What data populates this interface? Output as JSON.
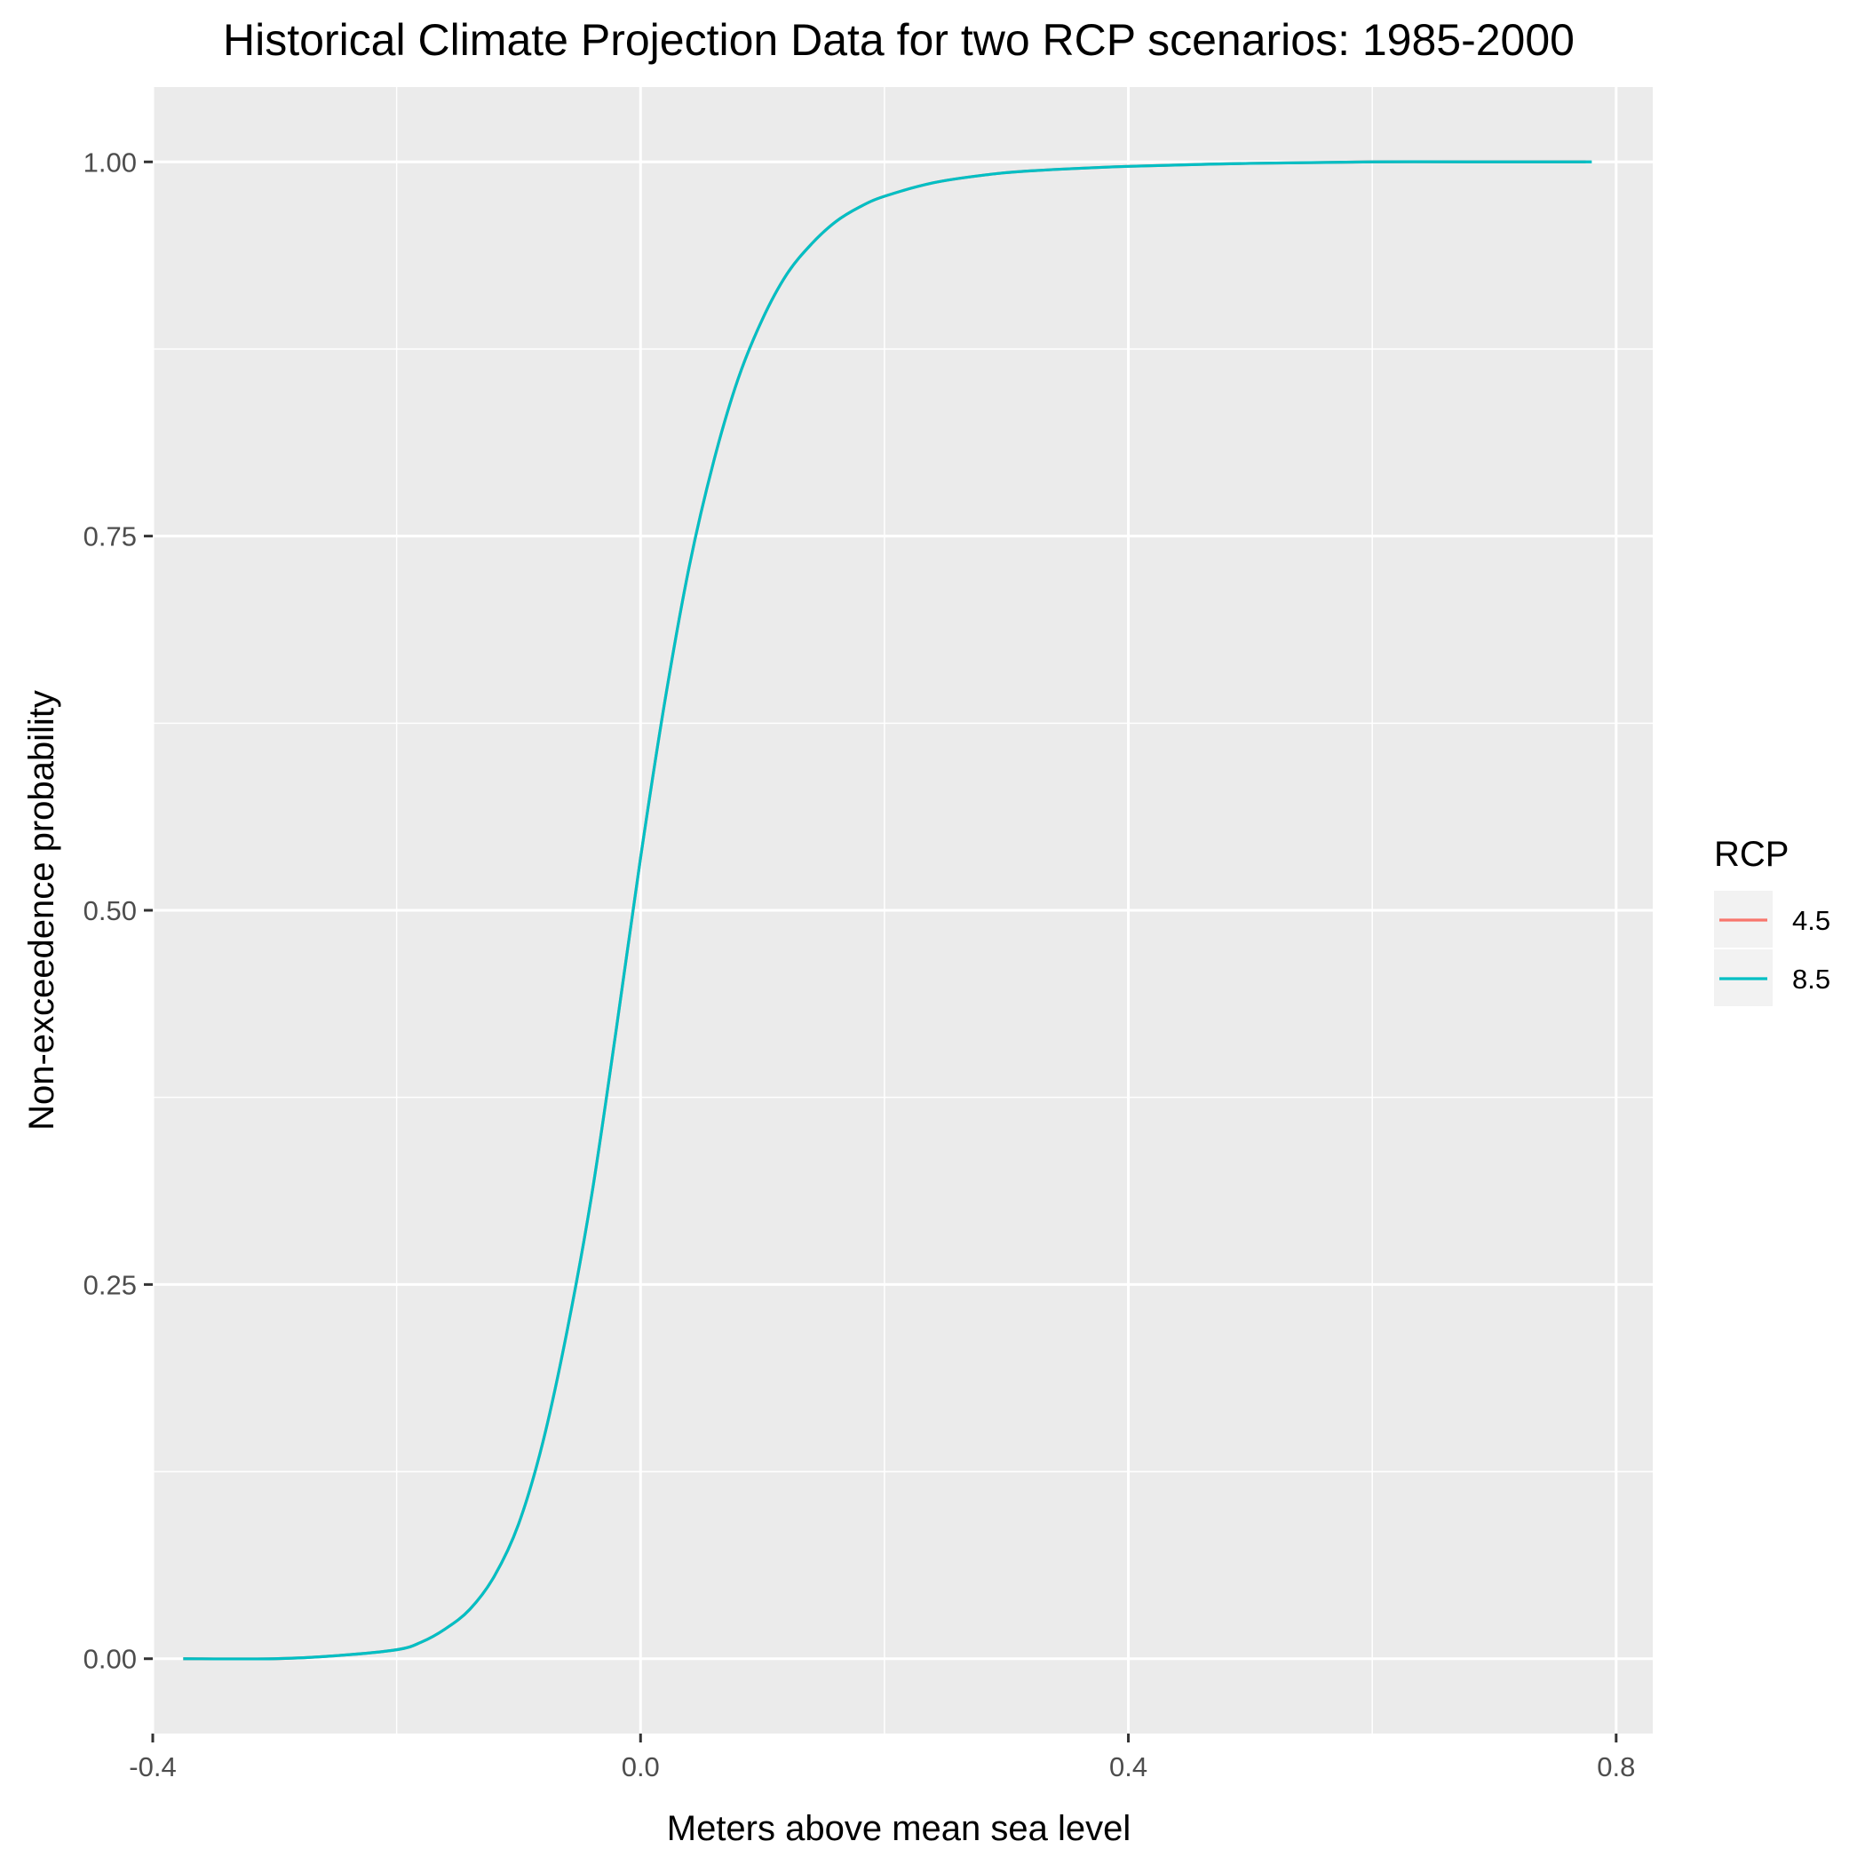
{
  "chart_data": {
    "type": "line",
    "title": "Historical Climate Projection Data for two RCP scenarios: 1985-2000",
    "xlabel": "Meters above mean sea level",
    "ylabel": "Non-exceedence probability",
    "xlim": [
      -0.4,
      0.83
    ],
    "ylim": [
      -0.05,
      1.05
    ],
    "x_ticks": [
      -0.4,
      0.0,
      0.4,
      0.8
    ],
    "x_tick_labels": [
      "-0.4",
      "0.0",
      "0.4",
      "0.8"
    ],
    "y_ticks": [
      0.0,
      0.25,
      0.5,
      0.75,
      1.0
    ],
    "y_tick_labels": [
      "0.00",
      "0.25",
      "0.50",
      "0.75",
      "1.00"
    ],
    "grid": true,
    "legend": {
      "title": "RCP",
      "position": "right"
    },
    "series": [
      {
        "name": "4.5",
        "color": "#F8766D",
        "x": [
          -0.375,
          -0.3,
          -0.25,
          -0.2,
          -0.18,
          -0.16,
          -0.14,
          -0.12,
          -0.1,
          -0.08,
          -0.06,
          -0.04,
          -0.02,
          0.0,
          0.02,
          0.04,
          0.06,
          0.08,
          0.1,
          0.12,
          0.14,
          0.16,
          0.18,
          0.2,
          0.24,
          0.28,
          0.32,
          0.4,
          0.5,
          0.6,
          0.7,
          0.775
        ],
        "y": [
          0.0,
          0.0,
          0.002,
          0.006,
          0.011,
          0.02,
          0.033,
          0.055,
          0.09,
          0.145,
          0.22,
          0.31,
          0.42,
          0.535,
          0.64,
          0.73,
          0.8,
          0.855,
          0.895,
          0.925,
          0.945,
          0.96,
          0.97,
          0.977,
          0.986,
          0.991,
          0.994,
          0.997,
          0.999,
          1.0,
          1.0,
          1.0
        ]
      },
      {
        "name": "8.5",
        "color": "#00BFC4",
        "x": [
          -0.375,
          -0.3,
          -0.25,
          -0.2,
          -0.18,
          -0.16,
          -0.14,
          -0.12,
          -0.1,
          -0.08,
          -0.06,
          -0.04,
          -0.02,
          0.0,
          0.02,
          0.04,
          0.06,
          0.08,
          0.1,
          0.12,
          0.14,
          0.16,
          0.18,
          0.2,
          0.24,
          0.28,
          0.32,
          0.4,
          0.5,
          0.6,
          0.7,
          0.78
        ],
        "y": [
          0.0,
          0.0,
          0.002,
          0.006,
          0.011,
          0.02,
          0.033,
          0.055,
          0.09,
          0.145,
          0.22,
          0.31,
          0.42,
          0.535,
          0.64,
          0.73,
          0.8,
          0.855,
          0.895,
          0.925,
          0.945,
          0.96,
          0.97,
          0.977,
          0.986,
          0.991,
          0.994,
          0.997,
          0.999,
          1.0,
          1.0,
          1.0
        ]
      }
    ]
  }
}
